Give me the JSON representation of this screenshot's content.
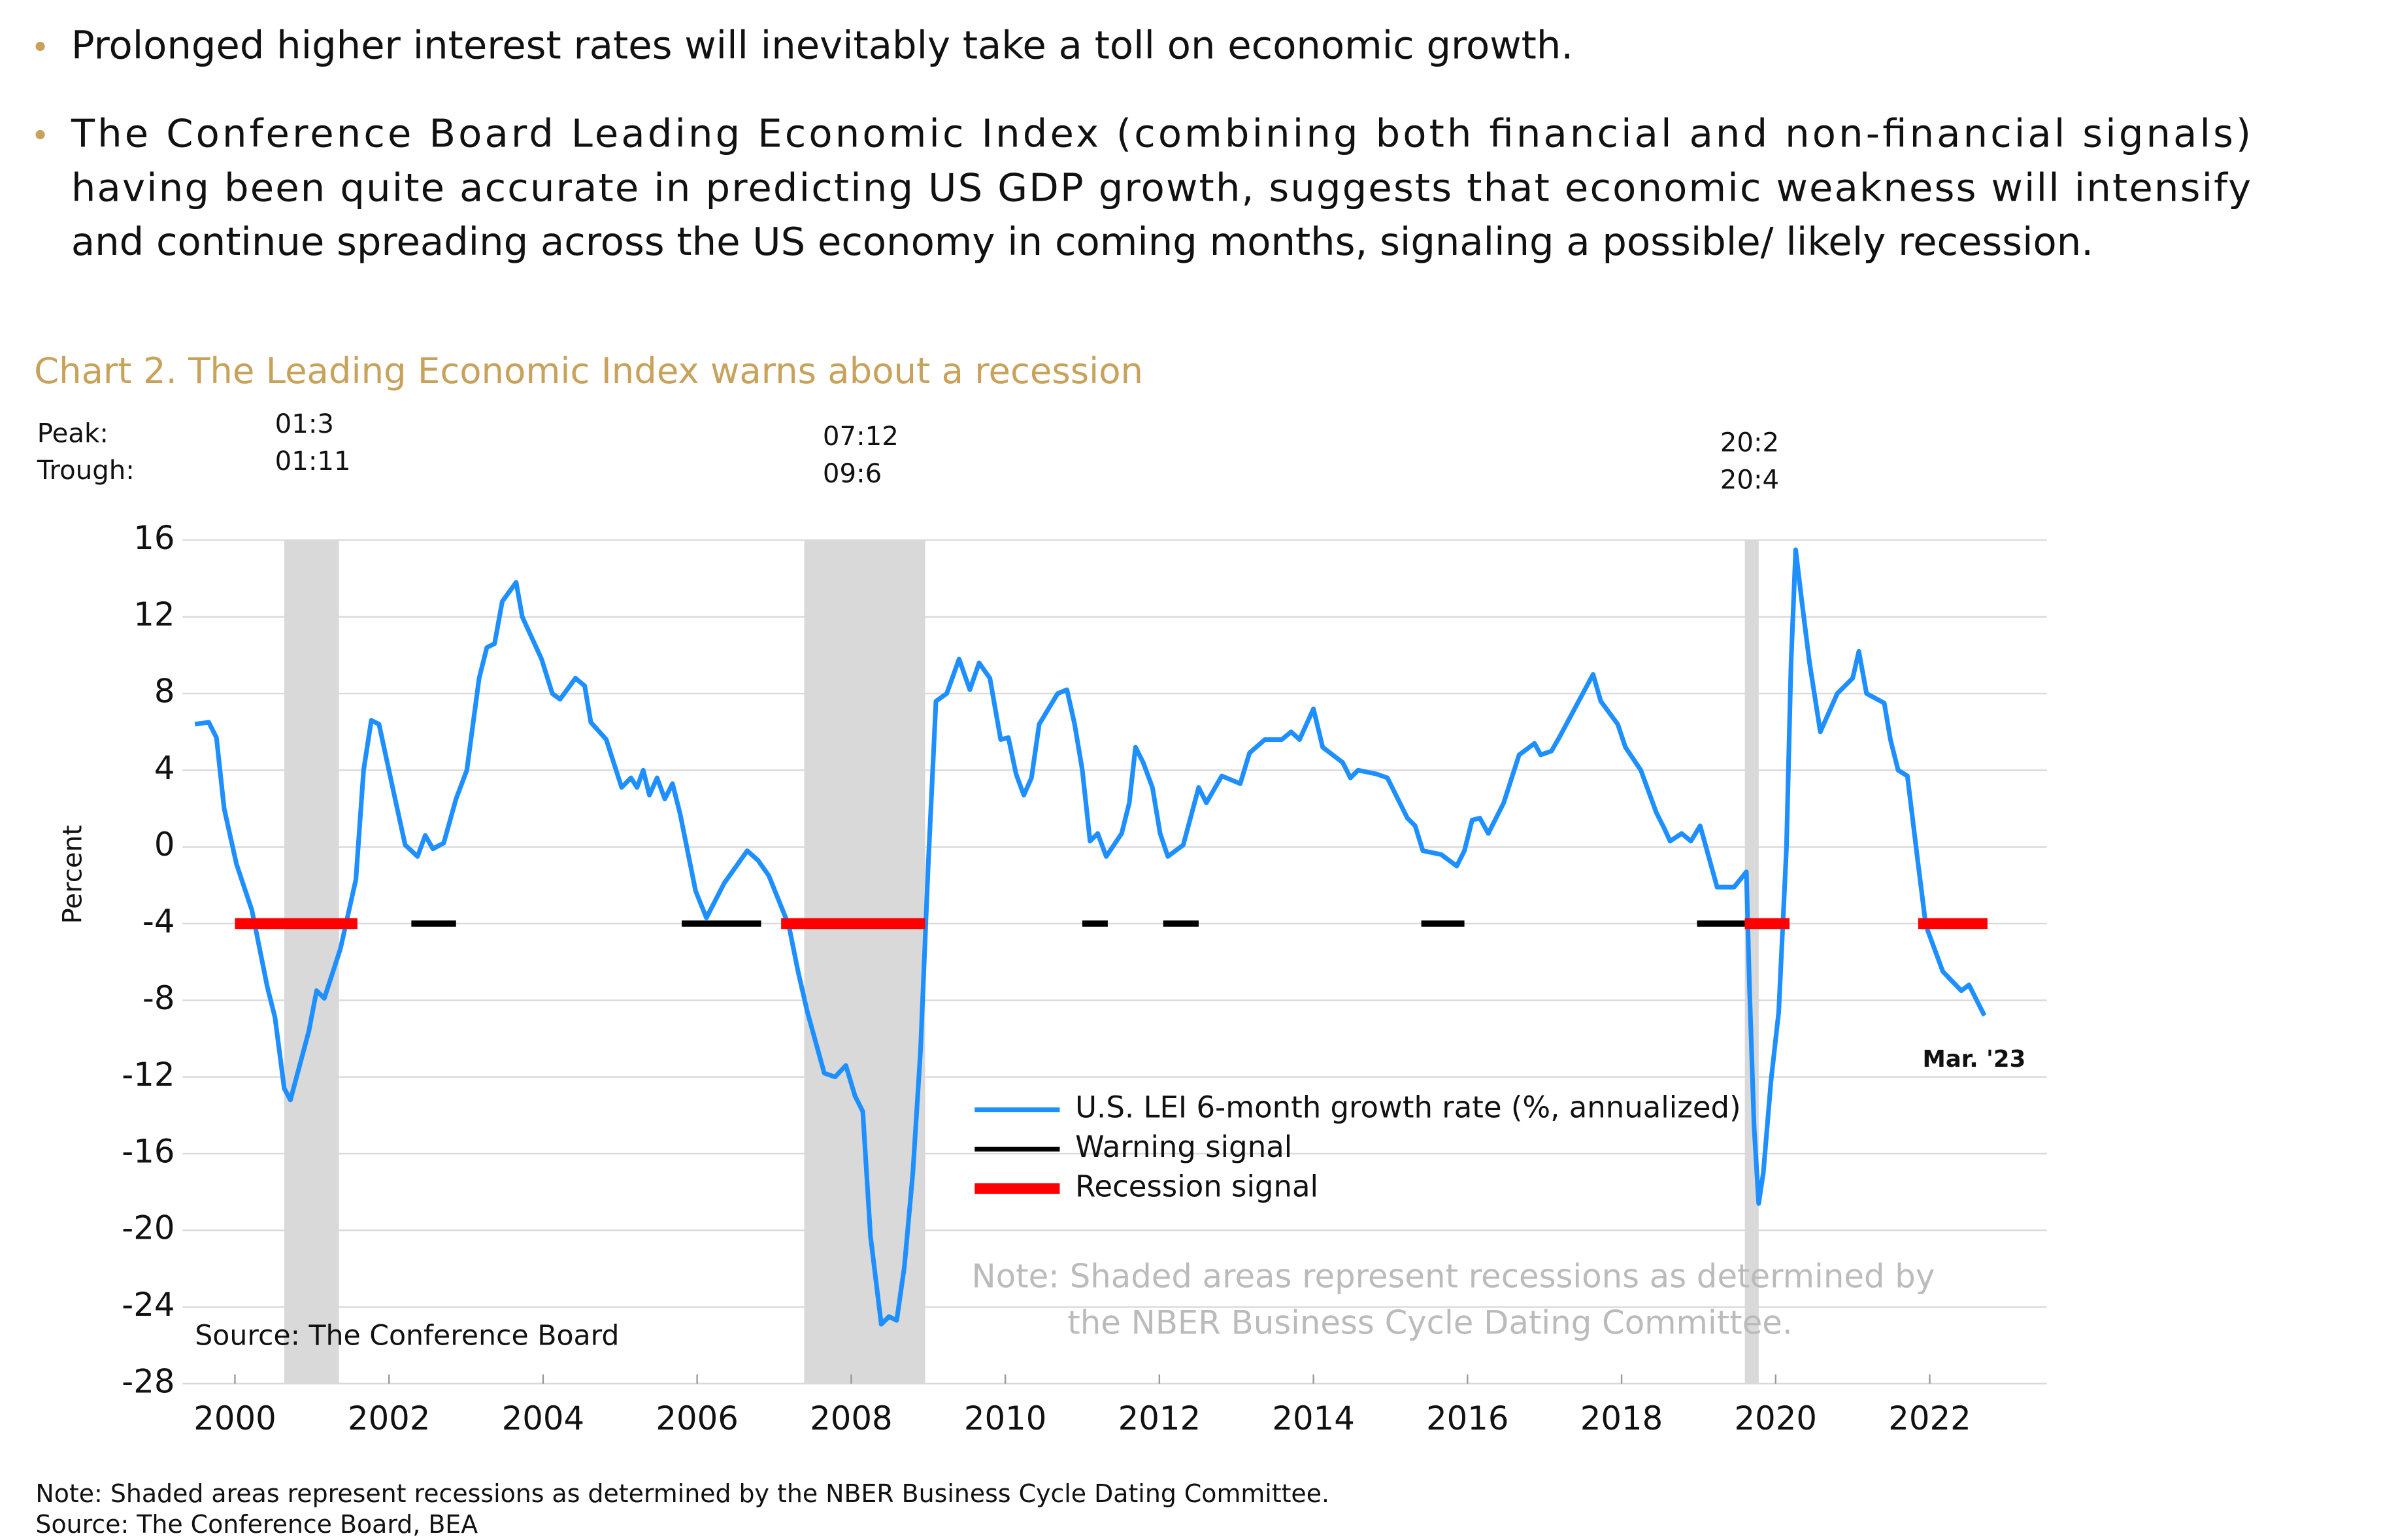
{
  "bullets": [
    [
      "Prolonged higher interest rates will inevitably take a toll on economic growth."
    ],
    [
      "The Conference Board Leading Economic Index (combining both financial and non-financial signals)",
      "having been quite accurate in predicting US GDP growth, suggests that economic weakness will intensify",
      "and continue spreading across the US economy in coming months, signaling a possible/ likely recession."
    ]
  ],
  "chart_data": {
    "type": "line",
    "title": "Chart 2. The Leading Economic Index warns about a recession",
    "y_label": "Percent",
    "xlim": [
      1999.32,
      2023.52
    ],
    "ylim": [
      -28,
      16
    ],
    "yticks": [
      16,
      12,
      8,
      4,
      0,
      -4,
      -8,
      -12,
      -16,
      -20,
      -24,
      -28
    ],
    "xticks": [
      2000,
      2002,
      2004,
      2006,
      2008,
      2010,
      2012,
      2014,
      2016,
      2018,
      2020,
      2022
    ],
    "grid": true,
    "series": [
      {
        "name": "U.S. LEI 6-month growth rate (%, annualized)",
        "color": "#1e8fff",
        "x": [
          1999.48,
          1999.66,
          1999.76,
          1999.86,
          2000.02,
          2000.22,
          2000.42,
          2000.52,
          2000.64,
          2000.72,
          2000.96,
          2001.06,
          2001.16,
          2001.37,
          2001.57,
          2001.67,
          2001.77,
          2001.87,
          2002.09,
          2002.21,
          2002.37,
          2002.47,
          2002.57,
          2002.71,
          2002.87,
          2003.01,
          2003.17,
          2003.27,
          2003.37,
          2003.47,
          2003.65,
          2003.73,
          2003.98,
          2004.12,
          2004.22,
          2004.42,
          2004.54,
          2004.62,
          2004.82,
          2005.02,
          2005.14,
          2005.22,
          2005.3,
          2005.38,
          2005.48,
          2005.58,
          2005.68,
          2005.78,
          2005.98,
          2006.12,
          2006.35,
          2006.65,
          2006.79,
          2006.93,
          2007.05,
          2007.19,
          2007.31,
          2007.43,
          2007.65,
          2007.79,
          2007.93,
          2008.05,
          2008.15,
          2008.25,
          2008.39,
          2008.49,
          2008.59,
          2008.69,
          2008.8,
          2008.9,
          2009.0,
          2009.1,
          2009.24,
          2009.4,
          2009.54,
          2009.66,
          2009.8,
          2009.94,
          2010.04,
          2010.14,
          2010.24,
          2010.34,
          2010.44,
          2010.68,
          2010.8,
          2010.9,
          2011.0,
          2011.1,
          2011.2,
          2011.31,
          2011.51,
          2011.61,
          2011.69,
          2011.79,
          2011.91,
          2012.01,
          2012.11,
          2012.31,
          2012.51,
          2012.61,
          2012.81,
          2013.05,
          2013.17,
          2013.37,
          2013.59,
          2013.71,
          2013.82,
          2014.0,
          2014.12,
          2014.38,
          2014.48,
          2014.58,
          2014.82,
          2014.96,
          2015.22,
          2015.32,
          2015.42,
          2015.66,
          2015.86,
          2015.96,
          2016.06,
          2016.16,
          2016.27,
          2016.47,
          2016.67,
          2016.87,
          2016.95,
          2017.09,
          2017.19,
          2017.39,
          2017.63,
          2017.73,
          2017.95,
          2018.05,
          2018.25,
          2018.45,
          2018.55,
          2018.63,
          2018.78,
          2018.9,
          2019.02,
          2019.24,
          2019.46,
          2019.62,
          2019.66,
          2019.72,
          2019.78,
          2019.84,
          2019.94,
          2020.04,
          2020.14,
          2020.2,
          2020.26,
          2020.34,
          2020.44,
          2020.58,
          2020.8,
          2021.0,
          2021.08,
          2021.18,
          2021.41,
          2021.49,
          2021.59,
          2021.71,
          2021.85,
          2021.95,
          2022.17,
          2022.41,
          2022.51,
          2022.71
        ],
        "values": [
          6.4,
          6.5,
          5.7,
          2.0,
          -0.9,
          -3.3,
          -7.3,
          -8.9,
          -12.6,
          -13.2,
          -9.6,
          -7.5,
          -7.9,
          -5.3,
          -1.7,
          4.0,
          6.6,
          6.4,
          2.3,
          0.1,
          -0.5,
          0.6,
          -0.1,
          0.2,
          2.5,
          4.0,
          8.8,
          10.4,
          10.6,
          12.8,
          13.8,
          12.0,
          9.8,
          8.0,
          7.7,
          8.8,
          8.4,
          6.5,
          5.6,
          3.1,
          3.6,
          3.1,
          4.0,
          2.7,
          3.6,
          2.5,
          3.3,
          1.7,
          -2.3,
          -3.7,
          -1.9,
          -0.2,
          -0.7,
          -1.5,
          -2.7,
          -4.1,
          -6.5,
          -8.6,
          -11.8,
          -12.0,
          -11.4,
          -13.0,
          -13.8,
          -20.3,
          -24.9,
          -24.5,
          -24.7,
          -21.9,
          -17.0,
          -10.6,
          -0.9,
          7.6,
          8.0,
          9.8,
          8.2,
          9.6,
          8.8,
          5.6,
          5.7,
          3.8,
          2.7,
          3.6,
          6.4,
          8.0,
          8.2,
          6.4,
          4.0,
          0.3,
          0.7,
          -0.5,
          0.7,
          2.3,
          5.2,
          4.4,
          3.1,
          0.7,
          -0.5,
          0.1,
          3.1,
          2.3,
          3.7,
          3.3,
          4.9,
          5.6,
          5.6,
          6.0,
          5.6,
          7.2,
          5.2,
          4.4,
          3.6,
          4.0,
          3.8,
          3.6,
          1.5,
          1.1,
          -0.2,
          -0.4,
          -1.0,
          -0.2,
          1.4,
          1.5,
          0.7,
          2.3,
          4.8,
          5.4,
          4.8,
          5.0,
          5.7,
          7.2,
          9.0,
          7.6,
          6.4,
          5.2,
          4.0,
          1.8,
          1.0,
          0.3,
          0.7,
          0.3,
          1.1,
          -2.1,
          -2.1,
          -1.3,
          -7.3,
          -14.6,
          -18.6,
          -17.0,
          -12.2,
          -8.6,
          -0.1,
          9.6,
          15.5,
          12.8,
          9.6,
          6.0,
          8.0,
          8.8,
          10.2,
          8.0,
          7.5,
          5.6,
          4.0,
          3.7,
          -0.9,
          -4.1,
          -6.5,
          -7.5,
          -7.2,
          -8.8
        ]
      },
      {
        "name": "Warning signal",
        "color": "#000000",
        "level": -4,
        "segments": [
          [
            2002.29,
            2002.87
          ],
          [
            2005.8,
            2006.83
          ],
          [
            2011.0,
            2011.33
          ],
          [
            2012.05,
            2012.51
          ],
          [
            2015.4,
            2015.96
          ],
          [
            2018.98,
            2019.6
          ]
        ]
      },
      {
        "name": "Recession signal",
        "color": "#ff0000",
        "level": -4,
        "segments": [
          [
            2000.0,
            2001.59
          ],
          [
            2007.09,
            2008.96
          ],
          [
            2019.6,
            2020.18
          ],
          [
            2021.85,
            2022.75
          ]
        ]
      }
    ],
    "recessions": {
      "color": "#d9d9d9",
      "spans": [
        [
          2000.64,
          2001.35
        ],
        [
          2007.39,
          2008.96
        ],
        [
          2019.6,
          2019.78
        ]
      ],
      "peaks": [
        "01:3",
        "07:12",
        "20:2"
      ],
      "troughs": [
        "01:11",
        "09:6",
        "20:4"
      ]
    },
    "peak_label": "Peak:",
    "trough_label": "Trough:",
    "annotations": {
      "last": "Mar. '23",
      "source": "Source: The Conference Board",
      "note": [
        "Note: Shaded areas represent recessions as determined by",
        "the NBER Business Cycle Dating Committee."
      ]
    }
  },
  "footer": [
    "Note: Shaded areas represent recessions as determined by the NBER Business Cycle Dating Committee.",
    "Source: The Conference Board, BEA"
  ]
}
